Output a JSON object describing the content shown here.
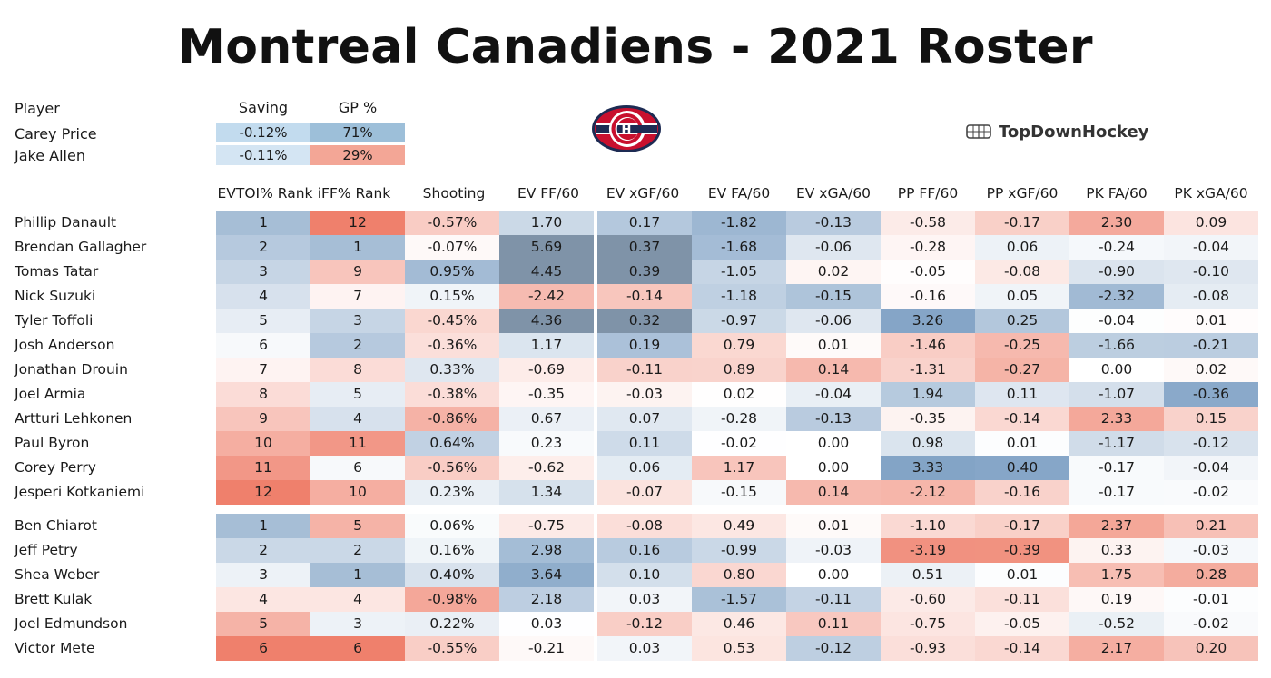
{
  "title": "Montreal Canadiens - 2021 Roster",
  "brand": "TopDownHockey",
  "logo_icon": "canadiens-logo-icon",
  "brand_icon": "rink-icon",
  "goalie_table": {
    "headers": [
      "Player",
      "Saving",
      "GP %"
    ],
    "rows": [
      {
        "name": "Carey Price",
        "saving": "-0.12%",
        "gp": "71%",
        "saving_color": "#c2dbee",
        "gp_color": "#9dbfd9"
      },
      {
        "name": "Jake Allen",
        "saving": "-0.11%",
        "gp": "29%",
        "saving_color": "#d4e5f3",
        "gp_color": "#f3a696"
      }
    ]
  },
  "skater_headers": [
    "EVTOI% Rank",
    "iFF% Rank",
    "Shooting",
    "EV FF/60",
    "EV xGF/60",
    "EV FA/60",
    "EV xGA/60",
    "PP FF/60",
    "PP xGF/60",
    "PK FA/60",
    "PK xGA/60"
  ],
  "chart_data": {
    "type": "table",
    "title": "Montreal Canadiens - 2021 Roster",
    "columns": [
      "EVTOI% Rank",
      "iFF% Rank",
      "Shooting",
      "EV FF/60",
      "EV xGF/60",
      "EV FA/60",
      "EV xGA/60",
      "PP FF/60",
      "PP xGF/60",
      "PK FA/60",
      "PK xGA/60"
    ],
    "goalies": [
      {
        "name": "Carey Price",
        "saving": "-0.12%",
        "gp_pct": "71%"
      },
      {
        "name": "Jake Allen",
        "saving": "-0.11%",
        "gp_pct": "29%"
      }
    ],
    "forwards": [
      {
        "name": "Phillip Danault",
        "values": [
          "1",
          "12",
          "-0.57%",
          "1.70",
          "0.17",
          "-1.82",
          "-0.13",
          "-0.58",
          "-0.17",
          "2.30",
          "0.09"
        ]
      },
      {
        "name": "Brendan Gallagher",
        "values": [
          "2",
          "1",
          "-0.07%",
          "5.69",
          "0.37",
          "-1.68",
          "-0.06",
          "-0.28",
          "0.06",
          "-0.24",
          "-0.04"
        ]
      },
      {
        "name": "Tomas Tatar",
        "values": [
          "3",
          "9",
          "0.95%",
          "4.45",
          "0.39",
          "-1.05",
          "0.02",
          "-0.05",
          "-0.08",
          "-0.90",
          "-0.10"
        ]
      },
      {
        "name": "Nick Suzuki",
        "values": [
          "4",
          "7",
          "0.15%",
          "-2.42",
          "-0.14",
          "-1.18",
          "-0.15",
          "-0.16",
          "0.05",
          "-2.32",
          "-0.08"
        ]
      },
      {
        "name": "Tyler Toffoli",
        "values": [
          "5",
          "3",
          "-0.45%",
          "4.36",
          "0.32",
          "-0.97",
          "-0.06",
          "3.26",
          "0.25",
          "-0.04",
          "0.01"
        ]
      },
      {
        "name": "Josh Anderson",
        "values": [
          "6",
          "2",
          "-0.36%",
          "1.17",
          "0.19",
          "0.79",
          "0.01",
          "-1.46",
          "-0.25",
          "-1.66",
          "-0.21"
        ]
      },
      {
        "name": "Jonathan Drouin",
        "values": [
          "7",
          "8",
          "0.33%",
          "-0.69",
          "-0.11",
          "0.89",
          "0.14",
          "-1.31",
          "-0.27",
          "0.00",
          "0.02"
        ]
      },
      {
        "name": "Joel Armia",
        "values": [
          "8",
          "5",
          "-0.38%",
          "-0.35",
          "-0.03",
          "0.02",
          "-0.04",
          "1.94",
          "0.11",
          "-1.07",
          "-0.36"
        ]
      },
      {
        "name": "Artturi Lehkonen",
        "values": [
          "9",
          "4",
          "-0.86%",
          "0.67",
          "0.07",
          "-0.28",
          "-0.13",
          "-0.35",
          "-0.14",
          "2.33",
          "0.15"
        ]
      },
      {
        "name": "Paul Byron",
        "values": [
          "10",
          "11",
          "0.64%",
          "0.23",
          "0.11",
          "-0.02",
          "0.00",
          "0.98",
          "0.01",
          "-1.17",
          "-0.12"
        ]
      },
      {
        "name": "Corey Perry",
        "values": [
          "11",
          "6",
          "-0.56%",
          "-0.62",
          "0.06",
          "1.17",
          "0.00",
          "3.33",
          "0.40",
          "-0.17",
          "-0.04"
        ]
      },
      {
        "name": "Jesperi Kotkaniemi",
        "values": [
          "12",
          "10",
          "0.23%",
          "1.34",
          "-0.07",
          "-0.15",
          "0.14",
          "-2.12",
          "-0.16",
          "-0.17",
          "-0.02"
        ]
      }
    ],
    "defense": [
      {
        "name": "Ben Chiarot",
        "values": [
          "1",
          "5",
          "0.06%",
          "-0.75",
          "-0.08",
          "0.49",
          "0.01",
          "-1.10",
          "-0.17",
          "2.37",
          "0.21"
        ]
      },
      {
        "name": "Jeff Petry",
        "values": [
          "2",
          "2",
          "0.16%",
          "2.98",
          "0.16",
          "-0.99",
          "-0.03",
          "-3.19",
          "-0.39",
          "0.33",
          "-0.03"
        ]
      },
      {
        "name": "Shea Weber",
        "values": [
          "3",
          "1",
          "0.40%",
          "3.64",
          "0.10",
          "0.80",
          "0.00",
          "0.51",
          "0.01",
          "1.75",
          "0.28"
        ]
      },
      {
        "name": "Brett Kulak",
        "values": [
          "4",
          "4",
          "-0.98%",
          "2.18",
          "0.03",
          "-1.57",
          "-0.11",
          "-0.60",
          "-0.11",
          "0.19",
          "-0.01"
        ]
      },
      {
        "name": "Joel Edmundson",
        "values": [
          "5",
          "3",
          "0.22%",
          "0.03",
          "-0.12",
          "0.46",
          "0.11",
          "-0.75",
          "-0.05",
          "-0.52",
          "-0.02"
        ]
      },
      {
        "name": "Victor Mete",
        "values": [
          "6",
          "6",
          "-0.55%",
          "-0.21",
          "0.03",
          "0.53",
          "-0.12",
          "-0.93",
          "-0.14",
          "2.17",
          "0.20"
        ]
      }
    ],
    "colors": {
      "good": "#5d88b5",
      "bad": "#ec6a52",
      "neutral": "#ffffff",
      "extreme_good": "#778899"
    }
  }
}
